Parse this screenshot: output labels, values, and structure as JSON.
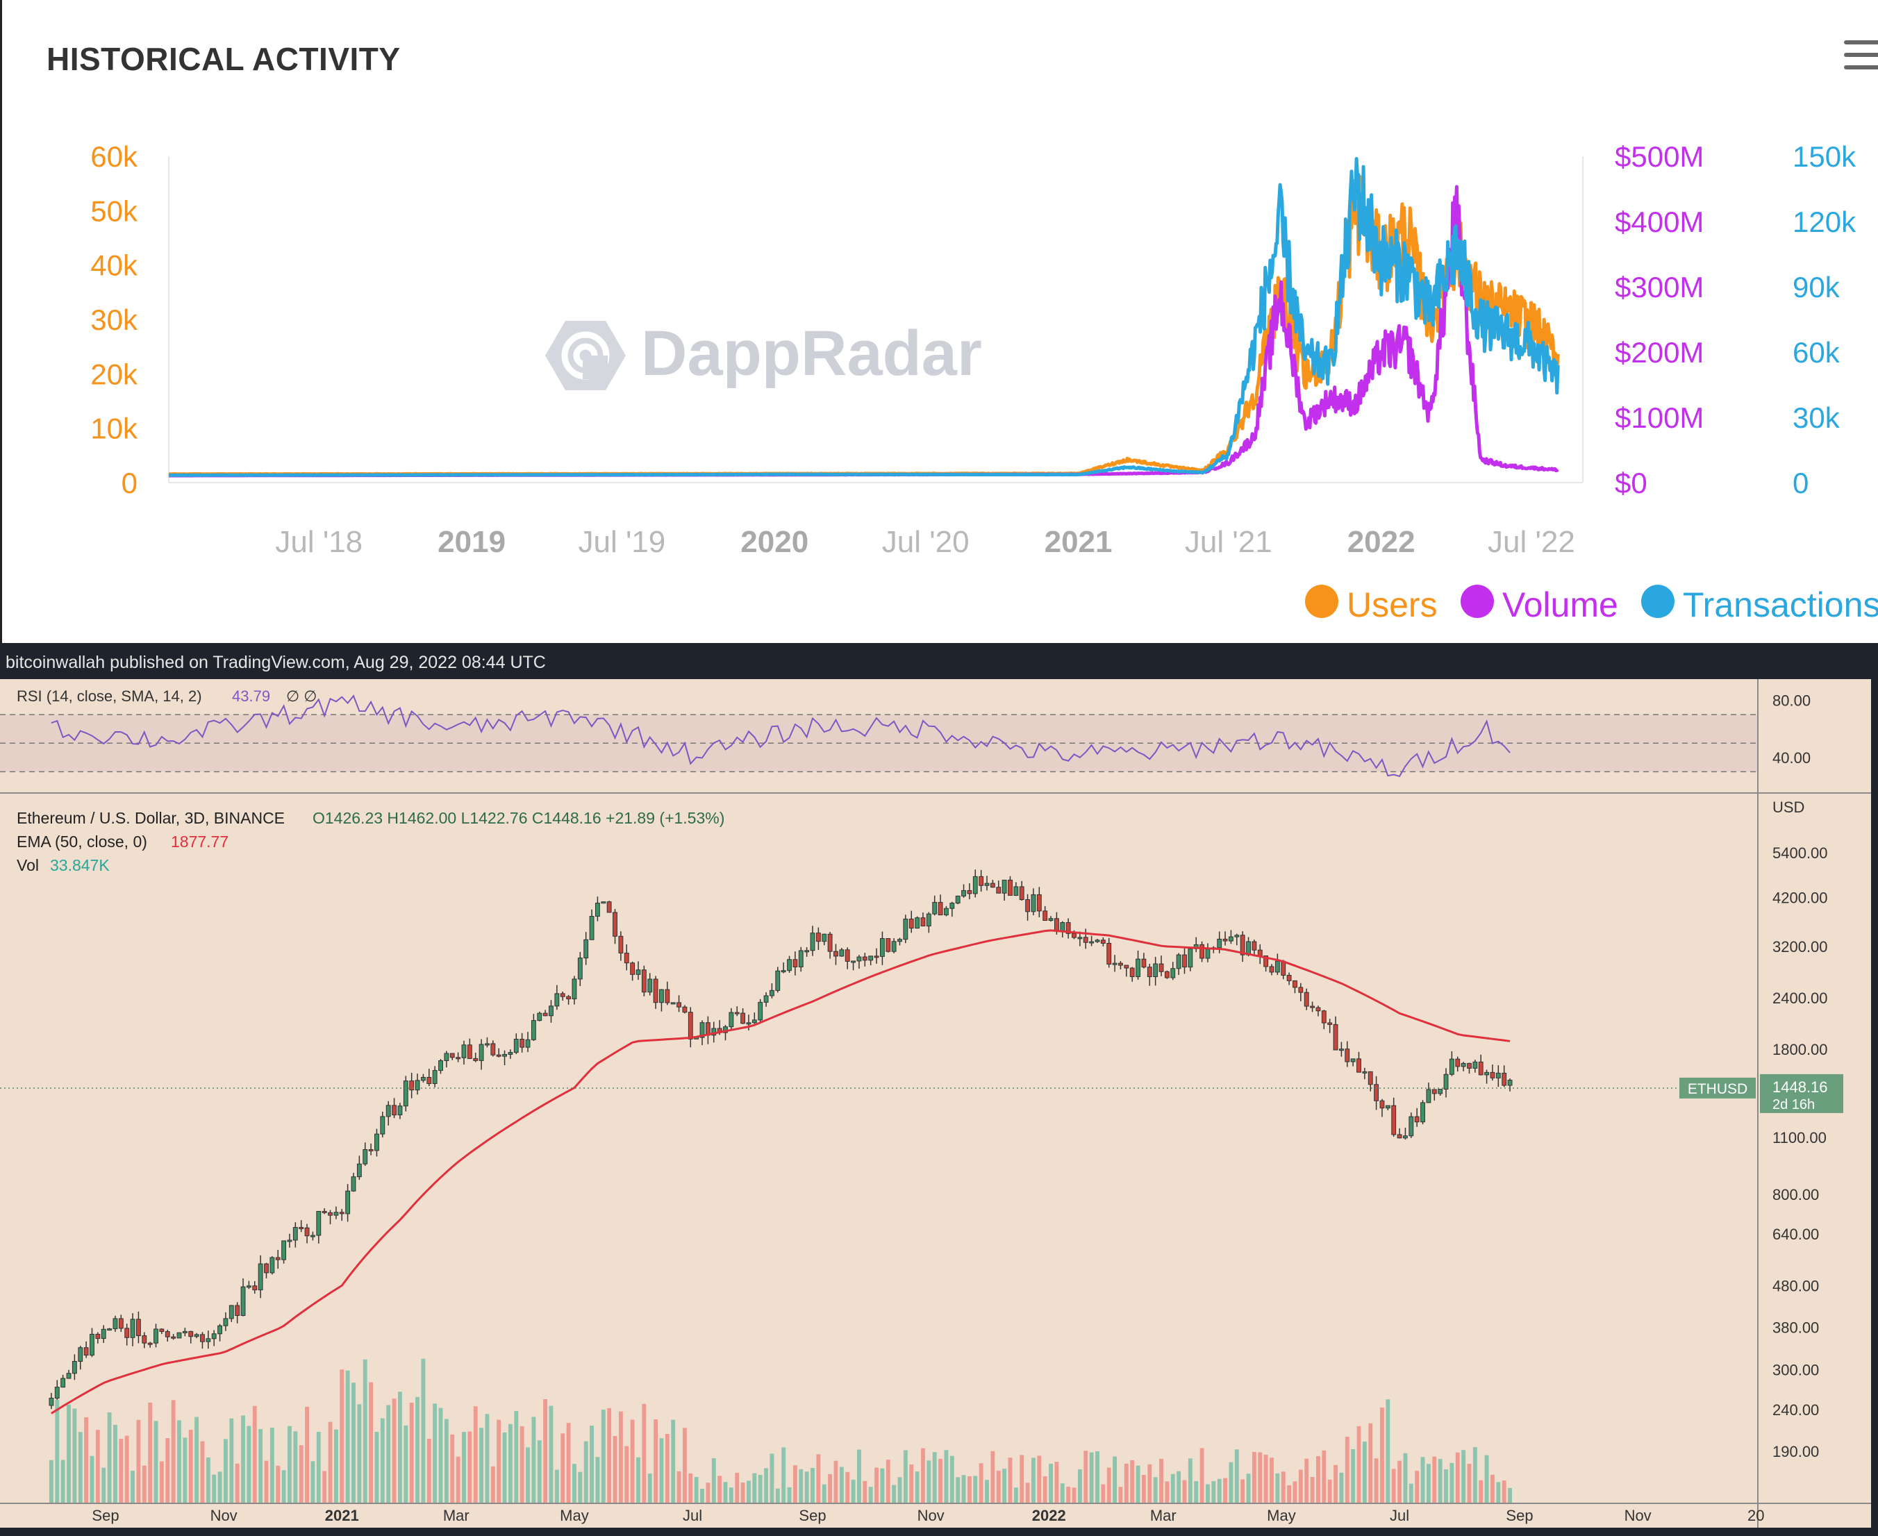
{
  "header": {
    "title": "HISTORICAL ACTIVITY",
    "menu_icon": "hamburger-menu-icon"
  },
  "watermark": {
    "text": "DappRadar"
  },
  "colors": {
    "users": "#f7931a",
    "volume": "#c22fed",
    "transactions": "#2ba7e0",
    "ema": "#e0303c",
    "rsi": "#7e57c2",
    "up": "#26a69a",
    "down": "#ef5350"
  },
  "credit": {
    "text": "bitcoinwallah published on TradingView.com, Aug 29, 2022 08:44 UTC"
  },
  "chart_data": [
    {
      "type": "line",
      "title": "HISTORICAL ACTIVITY",
      "x_ticks": [
        "Jul '18",
        "2019",
        "Jul '19",
        "2020",
        "Jul '20",
        "2021",
        "Jul '21",
        "2022",
        "Jul '22"
      ],
      "x_ticks_bold": [
        "2019",
        "2020",
        "2021",
        "2022"
      ],
      "axes": {
        "users": {
          "ticks": [
            "0",
            "10k",
            "20k",
            "30k",
            "40k",
            "50k",
            "60k"
          ],
          "range": [
            0,
            60000
          ]
        },
        "volume": {
          "ticks": [
            "$0",
            "$100M",
            "$200M",
            "$300M",
            "$400M",
            "$500M"
          ],
          "range": [
            0,
            500000000
          ]
        },
        "transactions": {
          "ticks": [
            "0",
            "30k",
            "60k",
            "90k",
            "120k",
            "150k"
          ],
          "range": [
            0,
            150000
          ]
        }
      },
      "legend_position": "bottom-right",
      "series": [
        {
          "name": "Users",
          "axis": "users",
          "x": [
            "2018-01",
            "2021-01",
            "2021-03",
            "2021-05",
            "2021-06",
            "2021-07",
            "2021-08",
            "2021-09",
            "2021-10",
            "2021-11",
            "2021-12",
            "2022-01",
            "2022-02",
            "2022-03",
            "2022-04",
            "2022-05",
            "2022-06",
            "2022-07",
            "2022-08"
          ],
          "y": [
            300,
            400,
            3000,
            1500,
            1000,
            5000,
            15000,
            35000,
            18000,
            22000,
            50000,
            40000,
            45000,
            28000,
            42000,
            32000,
            30000,
            28000,
            22000
          ]
        },
        {
          "name": "Volume",
          "axis": "volume",
          "x": [
            "2018-01",
            "2021-01",
            "2021-06",
            "2021-07",
            "2021-08",
            "2021-09",
            "2021-10",
            "2021-11",
            "2021-12",
            "2022-01",
            "2022-02",
            "2022-03",
            "2022-04",
            "2022-05",
            "2022-06",
            "2022-07",
            "2022-08"
          ],
          "y": [
            0,
            2000000,
            5000000,
            20000000,
            60000000,
            280000000,
            80000000,
            120000000,
            110000000,
            190000000,
            200000000,
            90000000,
            400000000,
            25000000,
            15000000,
            12000000,
            9000000
          ]
        },
        {
          "name": "Transactions",
          "axis": "transactions",
          "x": [
            "2018-01",
            "2019-10",
            "2020-01",
            "2021-01",
            "2021-03",
            "2021-05",
            "2021-06",
            "2021-07",
            "2021-08",
            "2021-09",
            "2021-10",
            "2021-11",
            "2021-12",
            "2022-01",
            "2022-02",
            "2022-03",
            "2022-04",
            "2022-05",
            "2022-06",
            "2022-07",
            "2022-08"
          ],
          "y": [
            200,
            500,
            600,
            500,
            4000,
            2000,
            1500,
            10000,
            60000,
            115000,
            55000,
            50000,
            135000,
            100000,
            95000,
            75000,
            105000,
            70000,
            65000,
            60000,
            45000
          ]
        }
      ]
    },
    {
      "type": "candlestick",
      "symbol_line": "Ethereum / U.S. Dollar, 3D, BINANCE",
      "ohlc": {
        "o": "O1426.23",
        "h": "H1462.00",
        "l": "L1422.76",
        "c": "C1448.16",
        "chg": "+21.89 (+1.53%)"
      },
      "ema": {
        "label": "EMA (50, close, 0)",
        "value": "1877.77"
      },
      "vol": {
        "label": "Vol",
        "value": "33.847K"
      },
      "price_axis_label": "USD",
      "price_ticks": [
        "190.00",
        "240.00",
        "300.00",
        "380.00",
        "480.00",
        "640.00",
        "800.00",
        "1100.00",
        "1800.00",
        "2400.00",
        "3200.00",
        "4200.00",
        "5400.00"
      ],
      "price_scale": "log",
      "last_price": {
        "symbol": "ETHUSD",
        "price": "1448.16",
        "countdown": "2d 16h"
      },
      "x_ticks": [
        "Sep",
        "Nov",
        "2021",
        "Mar",
        "May",
        "Jul",
        "Sep",
        "Nov",
        "2022",
        "Mar",
        "May",
        "Jul",
        "Sep",
        "Nov",
        "20"
      ],
      "x_ticks_bold": [
        "2021",
        "2022"
      ],
      "x": [
        "2020-08-01",
        "2020-09-01",
        "2020-10-01",
        "2020-11-01",
        "2020-12-01",
        "2021-01-01",
        "2021-02-01",
        "2021-03-01",
        "2021-04-01",
        "2021-05-01",
        "2021-05-12",
        "2021-06-01",
        "2021-07-01",
        "2021-08-01",
        "2021-09-01",
        "2021-10-01",
        "2021-11-01",
        "2021-12-01",
        "2022-01-01",
        "2022-02-01",
        "2022-03-01",
        "2022-04-01",
        "2022-05-01",
        "2022-06-01",
        "2022-07-01",
        "2022-08-01",
        "2022-08-29"
      ],
      "close": [
        230,
        390,
        360,
        380,
        600,
        740,
        1400,
        1750,
        1800,
        2600,
        4200,
        2700,
        2000,
        2200,
        3300,
        3000,
        3900,
        4700,
        3800,
        3000,
        2700,
        3400,
        2800,
        1800,
        1100,
        1700,
        1448
      ],
      "ema_close": [
        230,
        280,
        310,
        330,
        380,
        480,
        700,
        950,
        1200,
        1450,
        1650,
        1880,
        1920,
        2050,
        2350,
        2700,
        3050,
        3300,
        3500,
        3400,
        3200,
        3150,
        2950,
        2600,
        2200,
        1950,
        1878
      ],
      "rsi": {
        "label": "RSI (14, close, SMA, 14, 2)",
        "value": "43.79",
        "ticks": [
          "40.00",
          "80.00"
        ],
        "x": [
          "2020-08-01",
          "2020-10-01",
          "2021-01-01",
          "2021-03-01",
          "2021-05-01",
          "2021-07-01",
          "2021-09-01",
          "2021-11-01",
          "2022-01-01",
          "2022-03-01",
          "2022-05-01",
          "2022-07-01",
          "2022-08-15",
          "2022-08-29"
        ],
        "y": [
          60,
          52,
          78,
          60,
          70,
          42,
          62,
          60,
          42,
          44,
          54,
          30,
          60,
          44
        ]
      }
    }
  ]
}
